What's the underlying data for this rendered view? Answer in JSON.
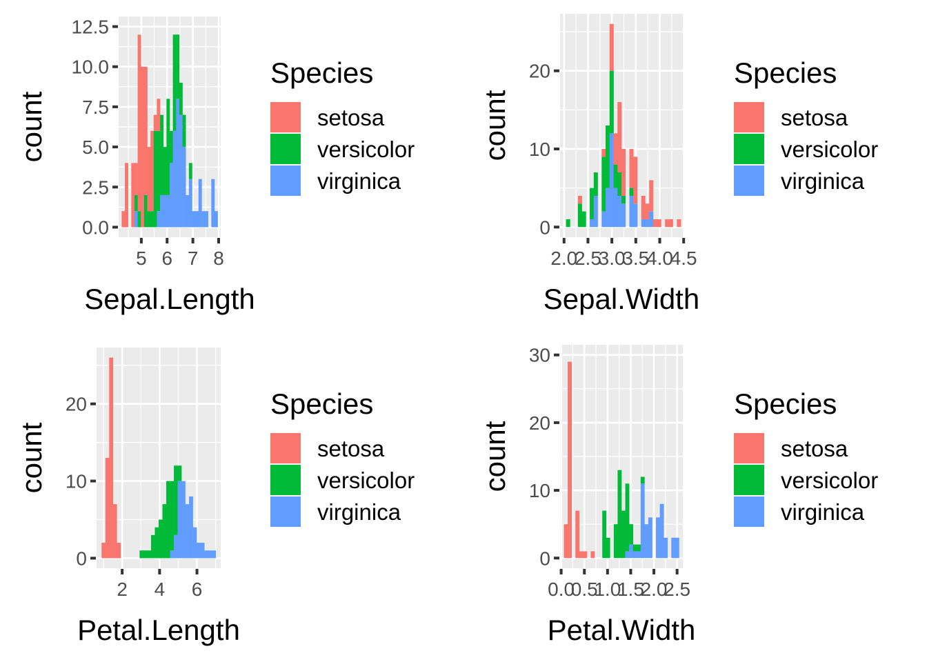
{
  "figure": {
    "background": "#ffffff",
    "panel_background": "#EBEBEB"
  },
  "chart_data": [
    {
      "type": "bar",
      "subtype": "stacked-histogram",
      "xlabel": "Sepal.Length",
      "ylabel": "count",
      "xlim": [
        4.3,
        7.9
      ],
      "ylim": [
        0,
        12.5
      ],
      "xticks": [
        5,
        6,
        7,
        8
      ],
      "xtick_labels": [
        "5",
        "6",
        "7",
        "8"
      ],
      "yticks": [
        0,
        2.5,
        5,
        7.5,
        10,
        12.5
      ],
      "ytick_labels": [
        "0.0",
        "2.5",
        "5.0",
        "7.5",
        "10.0",
        "12.5"
      ],
      "legend": {
        "title": "Species",
        "position": "right",
        "labels": [
          "setosa",
          "versicolor",
          "virginica"
        ]
      },
      "bin_width": 0.124,
      "bin_centers": [
        4.3,
        4.424,
        4.548,
        4.672,
        4.796,
        4.921,
        5.045,
        5.169,
        5.293,
        5.417,
        5.541,
        5.665,
        5.79,
        5.914,
        6.038,
        6.162,
        6.286,
        6.41,
        6.534,
        6.659,
        6.783,
        6.907,
        7.031,
        7.155,
        7.279,
        7.403,
        7.528,
        7.652,
        7.776,
        7.9
      ],
      "series": [
        {
          "name": "setosa",
          "color": "#F8766D",
          "values": [
            1,
            4,
            0,
            4,
            2,
            11,
            10,
            8,
            4,
            5,
            1,
            2,
            0,
            0,
            0,
            0,
            0,
            0,
            0,
            0,
            0,
            0,
            0,
            0,
            0,
            0,
            0,
            0,
            0,
            0
          ]
        },
        {
          "name": "versicolor",
          "color": "#00BA38",
          "values": [
            0,
            0,
            0,
            0,
            1,
            1,
            0,
            2,
            1,
            1,
            6,
            5,
            5,
            3,
            6,
            2,
            6,
            4,
            2,
            2,
            0,
            1,
            0,
            0,
            0,
            0,
            0,
            0,
            0,
            0
          ]
        },
        {
          "name": "virginica",
          "color": "#619CFF",
          "values": [
            0,
            0,
            0,
            0,
            1,
            0,
            0,
            0,
            0,
            0,
            0,
            1,
            2,
            2,
            2,
            4,
            6,
            8,
            7,
            5,
            2,
            3,
            1,
            1,
            3,
            1,
            1,
            0,
            3,
            1
          ]
        }
      ]
    },
    {
      "type": "bar",
      "subtype": "stacked-histogram",
      "xlabel": "Sepal.Width",
      "ylabel": "count",
      "xlim": [
        2.0,
        4.4
      ],
      "ylim": [
        0,
        26
      ],
      "xticks": [
        2.0,
        2.5,
        3.0,
        3.5,
        4.0,
        4.5
      ],
      "xtick_labels": [
        "2.0",
        "2.5",
        "3.0",
        "3.5",
        "4.0",
        "4.5"
      ],
      "yticks": [
        0,
        10,
        20
      ],
      "ytick_labels": [
        "0",
        "10",
        "20"
      ],
      "legend": {
        "title": "Species",
        "position": "right",
        "labels": [
          "setosa",
          "versicolor",
          "virginica"
        ]
      },
      "bin_width": 0.0828,
      "bin_centers": [
        2.0,
        2.083,
        2.166,
        2.248,
        2.331,
        2.414,
        2.497,
        2.579,
        2.662,
        2.745,
        2.828,
        2.91,
        2.993,
        3.076,
        3.159,
        3.241,
        3.324,
        3.407,
        3.49,
        3.572,
        3.655,
        3.738,
        3.821,
        3.903,
        3.986,
        4.069,
        4.152,
        4.234,
        4.317,
        4.4
      ],
      "series": [
        {
          "name": "setosa",
          "color": "#F8766D",
          "values": [
            0,
            0,
            0,
            0,
            1,
            0,
            0,
            0,
            0,
            0,
            1,
            0,
            6,
            4,
            9,
            6,
            0,
            5,
            6,
            0,
            3,
            2,
            4,
            1,
            1,
            0,
            1,
            1,
            0,
            1
          ]
        },
        {
          "name": "versicolor",
          "color": "#00BA38",
          "values": [
            0,
            1,
            0,
            0,
            3,
            2,
            0,
            4,
            3,
            0,
            7,
            8,
            8,
            3,
            3,
            1,
            0,
            1,
            0,
            0,
            0,
            0,
            0,
            0,
            0,
            0,
            0,
            0,
            0,
            0
          ]
        },
        {
          "name": "virginica",
          "color": "#619CFF",
          "values": [
            0,
            0,
            0,
            0,
            0,
            0,
            0,
            1,
            4,
            0,
            2,
            5,
            12,
            5,
            4,
            3,
            0,
            4,
            3,
            0,
            1,
            1,
            2,
            0,
            0,
            0,
            0,
            0,
            0,
            0
          ]
        }
      ]
    },
    {
      "type": "bar",
      "subtype": "stacked-histogram",
      "xlabel": "Petal.Length",
      "ylabel": "count",
      "xlim": [
        1.0,
        6.9
      ],
      "ylim": [
        0,
        26
      ],
      "xticks": [
        2,
        4,
        6
      ],
      "xtick_labels": [
        "2",
        "4",
        "6"
      ],
      "yticks": [
        0,
        10,
        20
      ],
      "ytick_labels": [
        "0",
        "10",
        "20"
      ],
      "legend": {
        "title": "Species",
        "position": "right",
        "labels": [
          "setosa",
          "versicolor",
          "virginica"
        ]
      },
      "bin_width": 0.2034,
      "bin_centers": [
        1.0,
        1.203,
        1.407,
        1.61,
        1.814,
        2.017,
        2.221,
        2.424,
        2.628,
        2.831,
        3.034,
        3.238,
        3.441,
        3.645,
        3.848,
        4.052,
        4.255,
        4.459,
        4.662,
        4.866,
        5.069,
        5.272,
        5.476,
        5.679,
        5.883,
        6.086,
        6.29,
        6.493,
        6.697,
        6.9
      ],
      "series": [
        {
          "name": "setosa",
          "color": "#F8766D",
          "values": [
            2,
            13,
            26,
            7,
            2,
            0,
            0,
            0,
            0,
            0,
            0,
            0,
            0,
            0,
            0,
            0,
            0,
            0,
            0,
            0,
            0,
            0,
            0,
            0,
            0,
            0,
            0,
            0,
            0,
            0
          ]
        },
        {
          "name": "versicolor",
          "color": "#00BA38",
          "values": [
            0,
            0,
            0,
            0,
            0,
            0,
            0,
            0,
            0,
            0,
            1,
            1,
            1,
            3,
            4,
            5,
            7,
            10,
            9,
            9,
            2,
            0,
            0,
            0,
            0,
            0,
            0,
            0,
            0,
            0
          ]
        },
        {
          "name": "virginica",
          "color": "#619CFF",
          "values": [
            0,
            0,
            0,
            0,
            0,
            0,
            0,
            0,
            0,
            0,
            0,
            0,
            0,
            0,
            0,
            0,
            0,
            0,
            1,
            3,
            10,
            10,
            7,
            8,
            4,
            2,
            2,
            1,
            1,
            1
          ]
        }
      ]
    },
    {
      "type": "bar",
      "subtype": "stacked-histogram",
      "xlabel": "Petal.Width",
      "ylabel": "count",
      "xlim": [
        0.1,
        2.5
      ],
      "ylim": [
        0,
        30
      ],
      "xticks": [
        0.0,
        0.5,
        1.0,
        1.5,
        2.0,
        2.5
      ],
      "xtick_labels": [
        "0.0",
        "0.5",
        "1.0",
        "1.5",
        "2.0",
        "2.5"
      ],
      "yticks": [
        0,
        10,
        20,
        30
      ],
      "ytick_labels": [
        "0",
        "10",
        "20",
        "30"
      ],
      "legend": {
        "title": "Species",
        "position": "right",
        "labels": [
          "setosa",
          "versicolor",
          "virginica"
        ]
      },
      "bin_width": 0.0828,
      "bin_centers": [
        0.1,
        0.183,
        0.266,
        0.348,
        0.431,
        0.514,
        0.597,
        0.679,
        0.762,
        0.845,
        0.928,
        1.01,
        1.093,
        1.176,
        1.259,
        1.341,
        1.424,
        1.507,
        1.59,
        1.672,
        1.755,
        1.838,
        1.921,
        2.003,
        2.086,
        2.169,
        2.252,
        2.334,
        2.417,
        2.5
      ],
      "series": [
        {
          "name": "setosa",
          "color": "#F8766D",
          "values": [
            5,
            29,
            0,
            7,
            1,
            1,
            0,
            1,
            0,
            0,
            0,
            0,
            0,
            0,
            0,
            0,
            0,
            0,
            0,
            0,
            0,
            0,
            0,
            0,
            0,
            0,
            0,
            0,
            0,
            0
          ]
        },
        {
          "name": "versicolor",
          "color": "#00BA38",
          "values": [
            0,
            0,
            0,
            0,
            0,
            0,
            0,
            0,
            0,
            0,
            7,
            3,
            0,
            5,
            13,
            7,
            10,
            3,
            1,
            1,
            1,
            0,
            0,
            0,
            0,
            0,
            0,
            0,
            0,
            0
          ]
        },
        {
          "name": "virginica",
          "color": "#619CFF",
          "values": [
            0,
            0,
            0,
            0,
            0,
            0,
            0,
            0,
            0,
            0,
            0,
            0,
            0,
            0,
            0,
            0,
            1,
            2,
            1,
            1,
            11,
            5,
            6,
            0,
            6,
            8,
            3,
            0,
            3,
            3
          ]
        }
      ]
    }
  ]
}
